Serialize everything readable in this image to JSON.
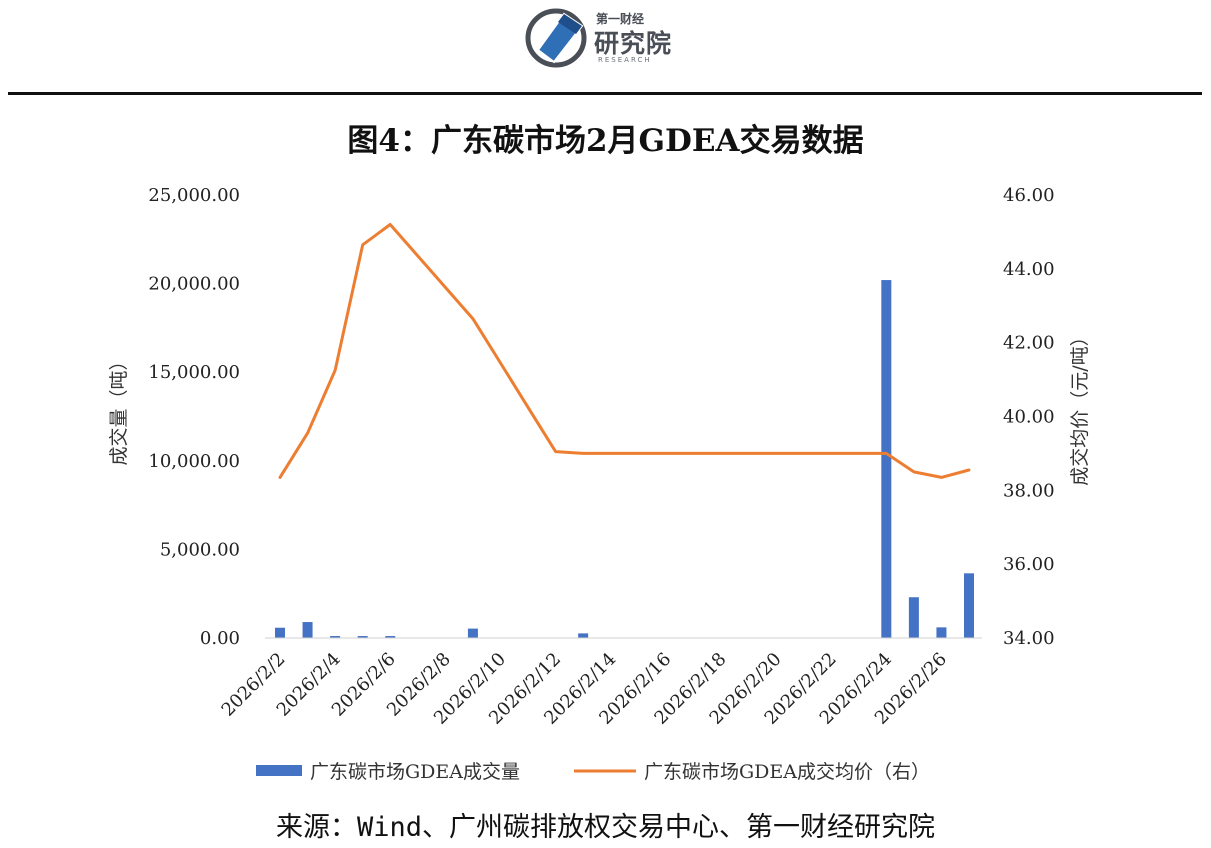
{
  "logo": {
    "line1": "第一财经",
    "line2": "研究院",
    "line3": "RESEARCH"
  },
  "source_text": "来源：Wind、广州碳排放权交易中心、第一财经研究院",
  "colors": {
    "bar": "#4472c4",
    "line": "#ed7d31",
    "rule": "#111111",
    "logo_blue": "#2f6fb5"
  },
  "chart_data": {
    "type": "bar+line",
    "title": "图4：广东碳市场2月GDEA交易数据",
    "categories": [
      "2026/2/2",
      "2026/2/3",
      "2026/2/4",
      "2026/2/5",
      "2026/2/6",
      "2026/2/9",
      "2026/2/10",
      "2026/2/11",
      "2026/2/12",
      "2026/2/13",
      "2026/2/24",
      "2026/2/25",
      "2026/2/26",
      "2026/2/27"
    ],
    "x_tick_labels": [
      "2026/2/2",
      "2026/2/4",
      "2026/2/6",
      "2026/2/8",
      "2026/2/10",
      "2026/2/12",
      "2026/2/14",
      "2026/2/16",
      "2026/2/18",
      "2026/2/20",
      "2026/2/22",
      "2026/2/24",
      "2026/2/26"
    ],
    "x_range": [
      "2026/2/2",
      "2026/2/27"
    ],
    "series": [
      {
        "name": "广东碳市场GDEA成交量",
        "type": "bar",
        "axis": "left",
        "values": [
          580,
          900,
          110,
          110,
          110,
          530,
          0,
          0,
          0,
          260,
          20200,
          2300,
          600,
          3650
        ]
      },
      {
        "name": "广东碳市场GDEA成交均价（右）",
        "type": "line",
        "axis": "right",
        "values": [
          38.35,
          39.55,
          41.25,
          44.65,
          45.2,
          42.65,
          41.45,
          40.25,
          39.05,
          39.0,
          39.0,
          38.5,
          38.35,
          38.55
        ]
      }
    ],
    "y_left_label": "成交量（吨）",
    "y_left_range": [
      0,
      25000
    ],
    "y_left_ticks": [
      "0.00",
      "5,000.00",
      "10,000.00",
      "15,000.00",
      "20,000.00",
      "25,000.00"
    ],
    "y_right_label": "成交均价（元/吨）",
    "y_right_range": [
      34,
      46
    ],
    "y_right_ticks": [
      "34.00",
      "36.00",
      "38.00",
      "40.00",
      "42.00",
      "44.00",
      "46.00"
    ],
    "grid": false,
    "legend_position": "bottom"
  }
}
